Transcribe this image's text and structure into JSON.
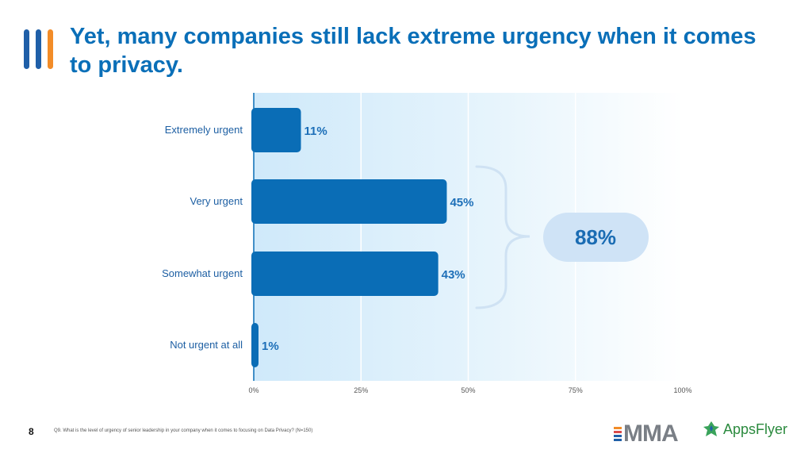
{
  "title": "Yet, many companies still lack extreme urgency when it comes to privacy.",
  "page_number": "8",
  "footnote": "Q9. What is the level of urgency of senior leadership in your company when it comes to focusing on Data Privacy? (N=150)",
  "logos": {
    "mma": "MMA",
    "appsflyer": "AppsFlyer"
  },
  "colors": {
    "bar": "#0a6db6",
    "title": "#0a6fb8",
    "bubble": "#cfe3f6",
    "bracket": "#cfe2f3",
    "bg_gradient_start": "#cfe9fa",
    "accent_blue": "#1f5fa8",
    "accent_orange": "#f28c28"
  },
  "chart_data": {
    "type": "bar",
    "orientation": "horizontal",
    "categories": [
      "Extremely urgent",
      "Very urgent",
      "Somewhat urgent",
      "Not urgent at all"
    ],
    "values": [
      11,
      45,
      43,
      1
    ],
    "value_labels": [
      "11%",
      "45%",
      "43%",
      "1%"
    ],
    "xlim": [
      0,
      100
    ],
    "xticks": [
      0,
      25,
      50,
      75,
      100
    ],
    "xtick_labels": [
      "0%",
      "25%",
      "50%",
      "75%",
      "100%"
    ],
    "grid": true,
    "annotation": {
      "text": "88%",
      "groups": [
        "Very urgent",
        "Somewhat urgent"
      ]
    }
  }
}
